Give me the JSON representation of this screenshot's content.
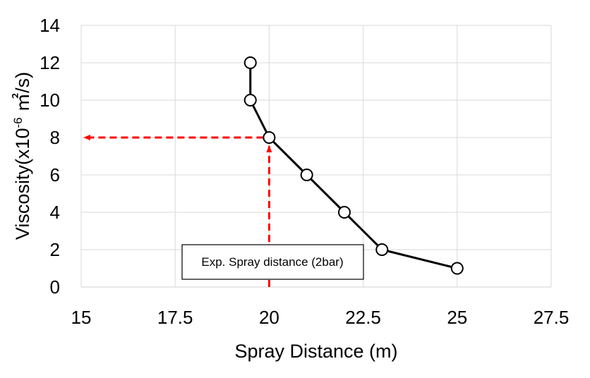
{
  "chart_data": {
    "type": "scatter",
    "title": "",
    "xlabel": "Spray Distance (m)",
    "ylabel_main": "Viscosity(x10",
    "ylabel_sup": "-6",
    "ylabel_tail": " ㎡/s)",
    "xlim": [
      15,
      27.5
    ],
    "ylim": [
      0,
      14
    ],
    "x_ticks": [
      "15",
      "17.5",
      "20",
      "22.5",
      "25",
      "27.5"
    ],
    "y_ticks": [
      "0",
      "2",
      "4",
      "6",
      "8",
      "10",
      "12",
      "14"
    ],
    "grid": true,
    "legend": "none",
    "series": [
      {
        "x": [
          19.5,
          19.5,
          20,
          21,
          22,
          23,
          25
        ],
        "y": [
          12,
          10,
          8,
          6,
          4,
          2,
          1
        ],
        "color": "#000000",
        "marker": "open-circle",
        "line": "solid"
      }
    ],
    "annotations": {
      "box_text": "Exp. Spray distance (2bar)",
      "guide_color": "#ff0000",
      "vertical_guide": {
        "x": 20,
        "from_y": 0,
        "to_y": 8
      },
      "horizontal_guide": {
        "y": 8,
        "from_x": 20,
        "to_x": 15
      }
    }
  }
}
